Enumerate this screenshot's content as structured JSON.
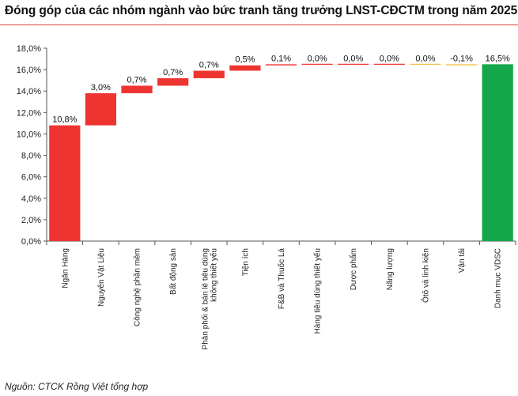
{
  "title": "Đóng góp của các nhóm ngành vào bức tranh tăng trưởng LNST-CĐCTM trong năm 2025",
  "source": "Nguồn: CTCK Rồng Việt tổng hợp",
  "colors": {
    "increase": "#ee3430",
    "decrease": "#f2c24c",
    "zero": "#f0c040",
    "total": "#14a84a",
    "accent_rule": "#e0403a"
  },
  "chart_data": {
    "type": "bar",
    "subtype": "waterfall",
    "title": "Đóng góp của các nhóm ngành vào bức tranh tăng trưởng LNST-CĐCTM trong năm 2025",
    "xlabel": "",
    "ylabel": "",
    "ylim": [
      0,
      18
    ],
    "yticks": [
      "0,0%",
      "2,0%",
      "4,0%",
      "6,0%",
      "8,0%",
      "10,0%",
      "12,0%",
      "14,0%",
      "16,0%",
      "18,0%"
    ],
    "grid": false,
    "legend": "none",
    "categories": [
      [
        "Ngân Hàng"
      ],
      [
        "Nguyên Vật Liệu"
      ],
      [
        "Công nghệ phần mềm"
      ],
      [
        "Bất động sản"
      ],
      [
        "Phân phối & bán lẻ tiêu dùng",
        "không thiết yếu"
      ],
      [
        "Tiện ích"
      ],
      [
        "F&B và Thuốc Lá"
      ],
      [
        "Hàng tiêu dùng thiết yếu"
      ],
      [
        "Dược phẩm"
      ],
      [
        "Năng lượng"
      ],
      [
        "Ôtô và linh kiện"
      ],
      [
        "Vận tải"
      ],
      [
        "Danh mục VDSC"
      ]
    ],
    "values": [
      10.8,
      3.0,
      0.7,
      0.7,
      0.7,
      0.5,
      0.1,
      0.0,
      0.0,
      0.0,
      0.0,
      -0.1,
      16.5
    ],
    "labels": [
      "10,8%",
      "3,0%",
      "0,7%",
      "0,7%",
      "0,7%",
      "0,5%",
      "0,1%",
      "0,0%",
      "0,0%",
      "0,0%",
      "0,0%",
      "-0,1%",
      "16,5%"
    ],
    "bar_kind": [
      "increase",
      "increase",
      "increase",
      "increase",
      "increase",
      "increase",
      "increase",
      "increase",
      "increase",
      "increase",
      "zero",
      "decrease",
      "total"
    ]
  }
}
